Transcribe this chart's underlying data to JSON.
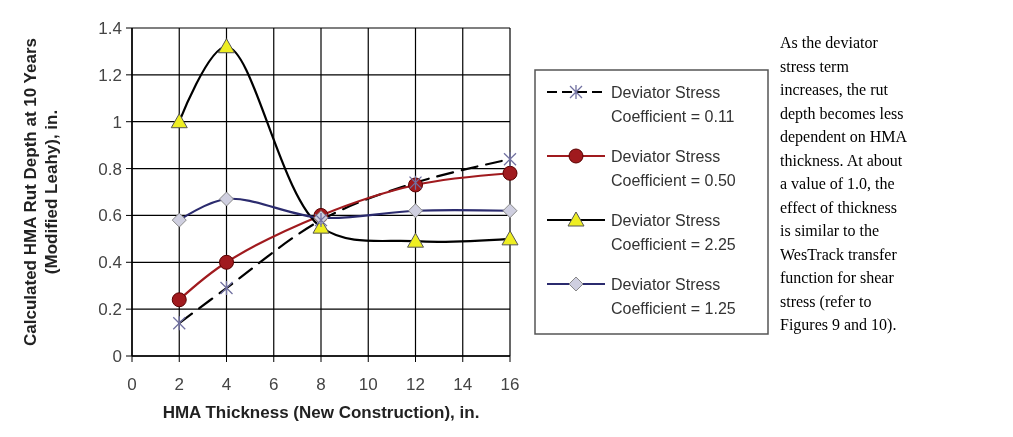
{
  "chart_data": {
    "type": "line",
    "xlabel": "HMA Thickness (New Construction), in.",
    "ylabel": "Calculated HMA Rut Depth at 10 Years (Modified Leahy), in.",
    "x": [
      2,
      4,
      8,
      12,
      16
    ],
    "series": [
      {
        "name": "Deviator Stress Coefficient = 0.11",
        "color": "#000000",
        "values": [
          0.14,
          0.29,
          0.58,
          0.74,
          0.84
        ],
        "marker": "cross",
        "line_style": "dashed"
      },
      {
        "name": "Deviator Stress Coefficient = 0.50",
        "color": "#a01a1e",
        "values": [
          0.24,
          0.4,
          0.6,
          0.73,
          0.78
        ],
        "marker": "circle",
        "line_style": "solid"
      },
      {
        "name": "Deviator Stress Coefficient = 2.25",
        "color": "#000000",
        "values": [
          1.0,
          1.32,
          0.55,
          0.49,
          0.5
        ],
        "marker": "triangle",
        "line_style": "solid"
      },
      {
        "name": "Deviator Stress Coefficient = 1.25",
        "color": "#2b2b6e",
        "values": [
          0.58,
          0.67,
          0.59,
          0.62,
          0.62
        ],
        "marker": "diamond",
        "line_style": "solid"
      }
    ],
    "xlim": [
      0,
      16
    ],
    "xticks": [
      0,
      2,
      4,
      6,
      8,
      10,
      12,
      14,
      16
    ],
    "ylim": [
      0,
      1.4
    ],
    "yticks": [
      0,
      0.2,
      0.4,
      0.6,
      0.8,
      1,
      1.2,
      1.4
    ],
    "grid": true,
    "legend": "right",
    "annotations": [
      "As the deviator stress term increases, the rut depth becomes less dependent on HMA thickness. At about a value of 1.0, the effect of thickness is similar to the WesTrack transfer function for shear stress (refer to Figures 9 and 10)."
    ]
  }
}
